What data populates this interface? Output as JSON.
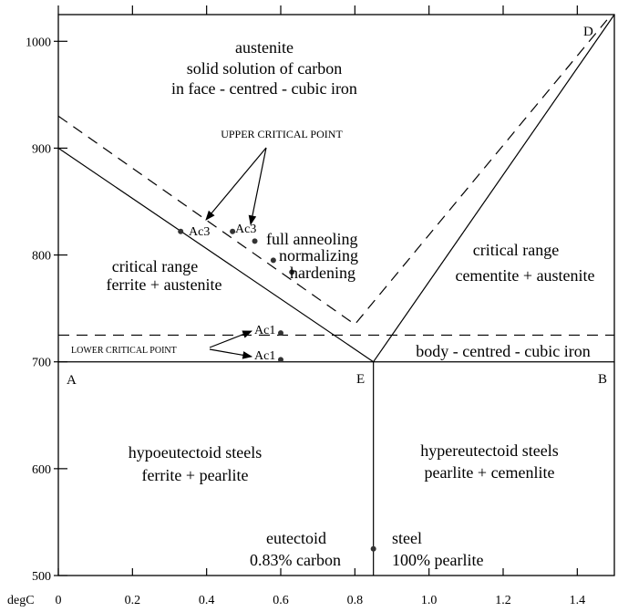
{
  "chart_data": {
    "type": "line",
    "title": "",
    "xlabel": "",
    "ylabel": "degC",
    "xlim": [
      0,
      1.5
    ],
    "ylim": [
      500,
      1025
    ],
    "x_ticks": [
      0,
      0.2,
      0.4,
      0.6,
      0.8,
      1.0,
      1.2,
      1.4
    ],
    "x_tick_labels": [
      "0",
      "0.2",
      "0.4",
      "0.6",
      "0.8",
      "1.0",
      "1.2",
      "1.4"
    ],
    "y_ticks": [
      500,
      600,
      700,
      800,
      900,
      1000
    ],
    "y_tick_labels": [
      "500",
      "600",
      "700",
      "800",
      "900",
      "1000"
    ],
    "grid": false,
    "solid_lines": [
      {
        "name": "",
        "points": [
          [
            0,
            900
          ],
          [
            0.85,
            700
          ]
        ]
      },
      {
        "name": "",
        "points": [
          [
            0.85,
            700
          ],
          [
            1.5,
            1025
          ]
        ]
      },
      {
        "name": "",
        "points": [
          [
            0,
            700
          ],
          [
            1.5,
            700
          ]
        ]
      },
      {
        "name": "",
        "points": [
          [
            0.85,
            500
          ],
          [
            0.85,
            700
          ]
        ]
      }
    ],
    "dashed_lines": [
      {
        "name": "",
        "points": [
          [
            0,
            930
          ],
          [
            0.8,
            735
          ],
          [
            1.48,
            1020
          ]
        ]
      },
      {
        "name": "",
        "points": [
          [
            0,
            725
          ],
          [
            1.5,
            725
          ]
        ]
      }
    ],
    "points": [
      {
        "name": "",
        "x": 0.33,
        "y": 822
      },
      {
        "name": "",
        "x": 0.47,
        "y": 822
      },
      {
        "name": "",
        "x": 0.6,
        "y": 727
      },
      {
        "name": "",
        "x": 0.6,
        "y": 702
      },
      {
        "name": "",
        "x": 0.53,
        "y": 813
      },
      {
        "name": "",
        "x": 0.58,
        "y": 795
      },
      {
        "name": "",
        "x": 0.63,
        "y": 784
      },
      {
        "name": "",
        "x": 0.85,
        "y": 525
      }
    ]
  },
  "labels": {
    "austenite_1": "austenite",
    "austenite_2": "solid solution of carbon",
    "austenite_3": "in face - centred - cubic iron",
    "upper_critical": "UPPER CRITICAL POINT",
    "ac3_a": "Ac3",
    "ac3_b": "Ac3",
    "full_anneal": "full anneoling",
    "normalizing": "normalizing",
    "hardening": "hardening",
    "crit_left_1": "critical range",
    "crit_left_2": "ferrite + austenite",
    "crit_right_1": "critical range",
    "crit_right_2": "cementite + austenite",
    "ac1_a": "Ac1",
    "ac1_b": "Ac1",
    "lower_critical": "LOWER CRITICAL POINT",
    "bcc": "body - centred - cubic iron",
    "corner_a": "A",
    "corner_b": "B",
    "corner_d": "D",
    "corner_e": "E",
    "hypo_1": "hypoeutectoid steels",
    "hypo_2": "ferrite + pearlite",
    "hyper_1": "hypereutectoid steels",
    "hyper_2": "pearlite + cemenlite",
    "eut_1": "eutectoid",
    "eut_2": "0.83% carbon",
    "steel_1": "steel",
    "steel_2": "100% pearlite"
  }
}
